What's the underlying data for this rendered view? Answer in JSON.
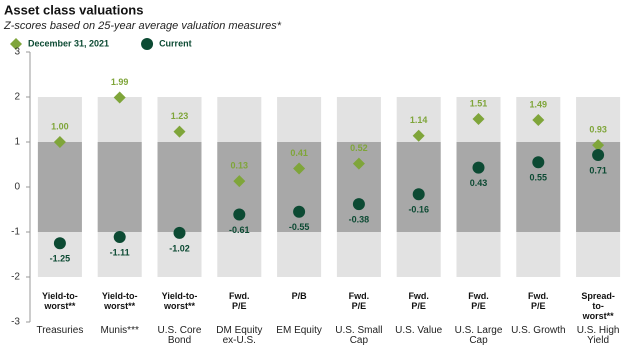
{
  "chart_data": {
    "type": "dot-range",
    "title": "Asset class valuations",
    "subtitle": "Z-scores based on 25-year average valuation measures*",
    "categories": [
      "Treasuries",
      "Munis***",
      "U.S. Core Bond",
      "DM Equity ex-U.S.",
      "EM Equity",
      "U.S. Small Cap",
      "U.S. Value",
      "U.S. Large Cap",
      "U.S. Growth",
      "U.S. High Yield"
    ],
    "measures": [
      "Yield-to-\nworst**",
      "Yield-to-\nworst**",
      "Yield-to-\nworst**",
      "Fwd.\nP/E",
      "P/B",
      "Fwd.\nP/E",
      "Fwd.\nP/E",
      "Fwd.\nP/E",
      "Fwd.\nP/E",
      "Spread-\nto-\nworst**"
    ],
    "series": [
      {
        "name": "December 31, 2021",
        "color": "#7fa53a",
        "marker": "diamond",
        "values": [
          1.0,
          1.99,
          1.23,
          0.13,
          0.41,
          0.52,
          1.14,
          1.51,
          1.49,
          0.93
        ],
        "value_labels": [
          "1.00",
          "1.99",
          "1.23",
          "0.13",
          "0.41",
          "0.52",
          "1.14",
          "1.51",
          "1.49",
          "0.93"
        ]
      },
      {
        "name": "Current",
        "color": "#0c4a33",
        "marker": "circle",
        "values": [
          -1.25,
          -1.11,
          -1.02,
          -0.61,
          -0.55,
          -0.38,
          -0.16,
          0.43,
          0.55,
          0.71
        ],
        "value_labels": [
          "-1.25",
          "-1.11",
          "-1.02",
          "-0.61",
          "-0.55",
          "-0.38",
          "-0.16",
          "0.43",
          "0.55",
          "0.71"
        ]
      }
    ],
    "shaded_ranges": [
      {
        "from": -2,
        "to": 2,
        "color": "#e2e2e2"
      },
      {
        "from": -1,
        "to": 1,
        "color": "#a8a8a8"
      }
    ],
    "ylim": [
      -3,
      3
    ],
    "yticks": [
      -3,
      -2,
      -1,
      0,
      1,
      2,
      3
    ]
  }
}
